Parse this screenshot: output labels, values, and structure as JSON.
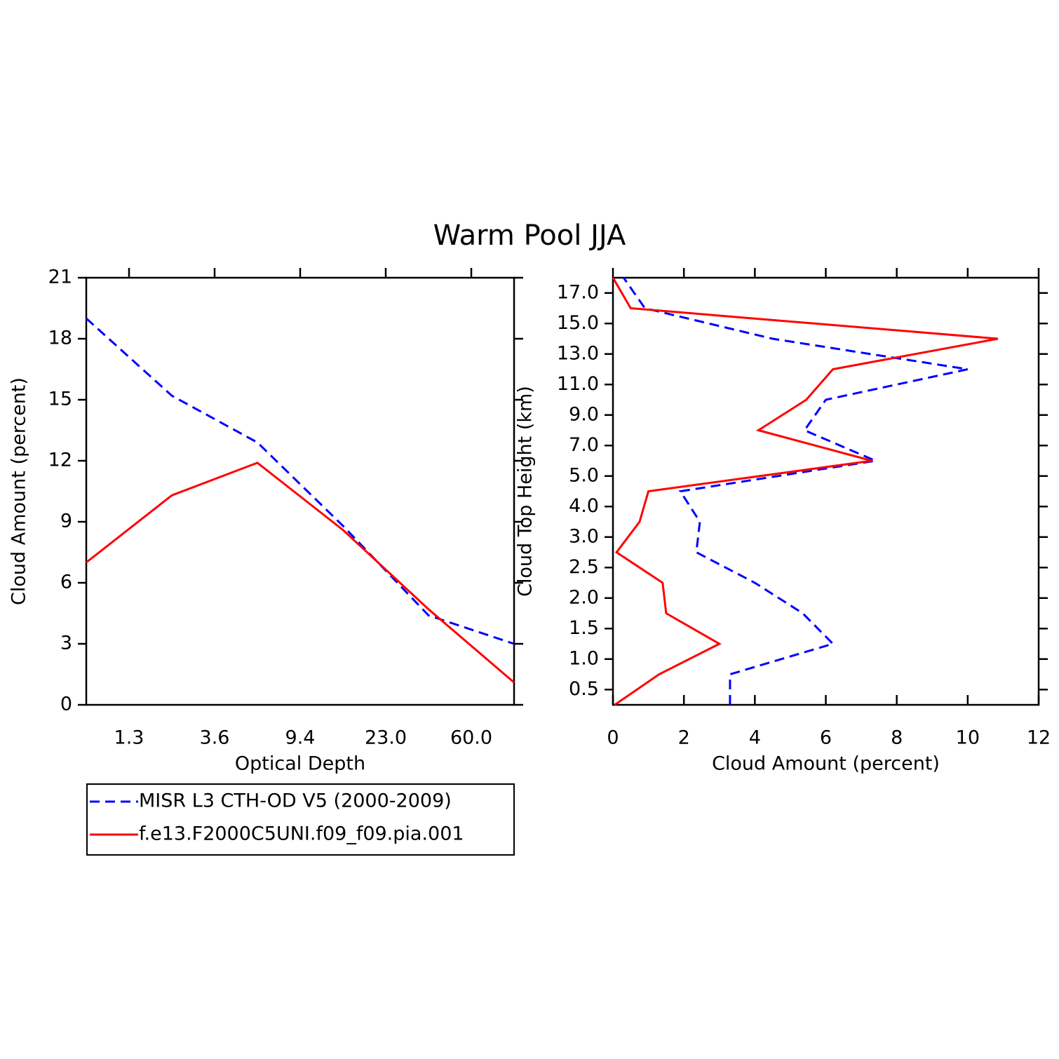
{
  "title": "Warm Pool JJA",
  "chart_data": [
    {
      "type": "line",
      "xlabel": "Optical Depth",
      "ylabel": "Cloud Amount (percent)",
      "x": [
        0,
        1,
        2,
        3,
        4,
        5
      ],
      "xlim": [
        0,
        5
      ],
      "xticks": [
        {
          "value": 0.5,
          "label": "1.3"
        },
        {
          "value": 1.5,
          "label": "3.6"
        },
        {
          "value": 2.5,
          "label": "9.4"
        },
        {
          "value": 3.5,
          "label": "23.0"
        },
        {
          "value": 4.5,
          "label": "60.0"
        }
      ],
      "ylim": [
        0,
        21
      ],
      "yticks": [
        0,
        3,
        6,
        9,
        12,
        15,
        18,
        21
      ],
      "legend": "bottom",
      "series": [
        {
          "name": "MISR L3 CTH-OD V5 (2000-2009)",
          "color": "#0000ff",
          "dashed": true,
          "values": [
            19.0,
            15.2,
            12.9,
            8.8,
            4.4,
            3.0
          ]
        },
        {
          "name": "f.e13.F2000C5UNI.f09_f09.pia.001",
          "color": "#ff0000",
          "dashed": false,
          "values": [
            7.0,
            10.3,
            11.9,
            8.6,
            4.7,
            1.1
          ]
        }
      ]
    },
    {
      "type": "line",
      "orientation": "horizontal",
      "xlabel": "Cloud Amount (percent)",
      "ylabel": "Cloud Top Height (km)",
      "y": [
        0,
        1,
        2,
        3,
        4,
        5,
        6,
        7,
        8,
        9,
        10,
        11,
        12,
        13,
        14
      ],
      "ylim": [
        0,
        14
      ],
      "yticks": [
        {
          "value": 0.5,
          "label": "0.5"
        },
        {
          "value": 1.5,
          "label": "1.0"
        },
        {
          "value": 2.5,
          "label": "1.5"
        },
        {
          "value": 3.5,
          "label": "2.0"
        },
        {
          "value": 4.5,
          "label": "2.5"
        },
        {
          "value": 5.5,
          "label": "3.0"
        },
        {
          "value": 6.5,
          "label": "4.0"
        },
        {
          "value": 7.5,
          "label": "5.0"
        },
        {
          "value": 8.5,
          "label": "7.0"
        },
        {
          "value": 9.5,
          "label": "9.0"
        },
        {
          "value": 10.5,
          "label": "11.0"
        },
        {
          "value": 11.5,
          "label": "13.0"
        },
        {
          "value": 12.5,
          "label": "15.0"
        },
        {
          "value": 13.5,
          "label": "17.0"
        }
      ],
      "xlim": [
        0,
        12
      ],
      "xticks": [
        0,
        2,
        4,
        6,
        8,
        10,
        12
      ],
      "series": [
        {
          "color": "#0000ff",
          "dashed": true,
          "values": [
            3.3,
            3.3,
            6.2,
            5.35,
            4.0,
            2.35,
            2.45,
            1.9,
            7.4,
            5.4,
            6.0,
            10.0,
            4.5,
            0.9,
            0.3
          ]
        },
        {
          "color": "#ff0000",
          "dashed": false,
          "values": [
            0.05,
            1.3,
            3.0,
            1.5,
            1.4,
            0.1,
            0.75,
            1.0,
            7.3,
            4.1,
            5.45,
            6.2,
            10.85,
            0.5,
            0
          ]
        }
      ]
    }
  ]
}
